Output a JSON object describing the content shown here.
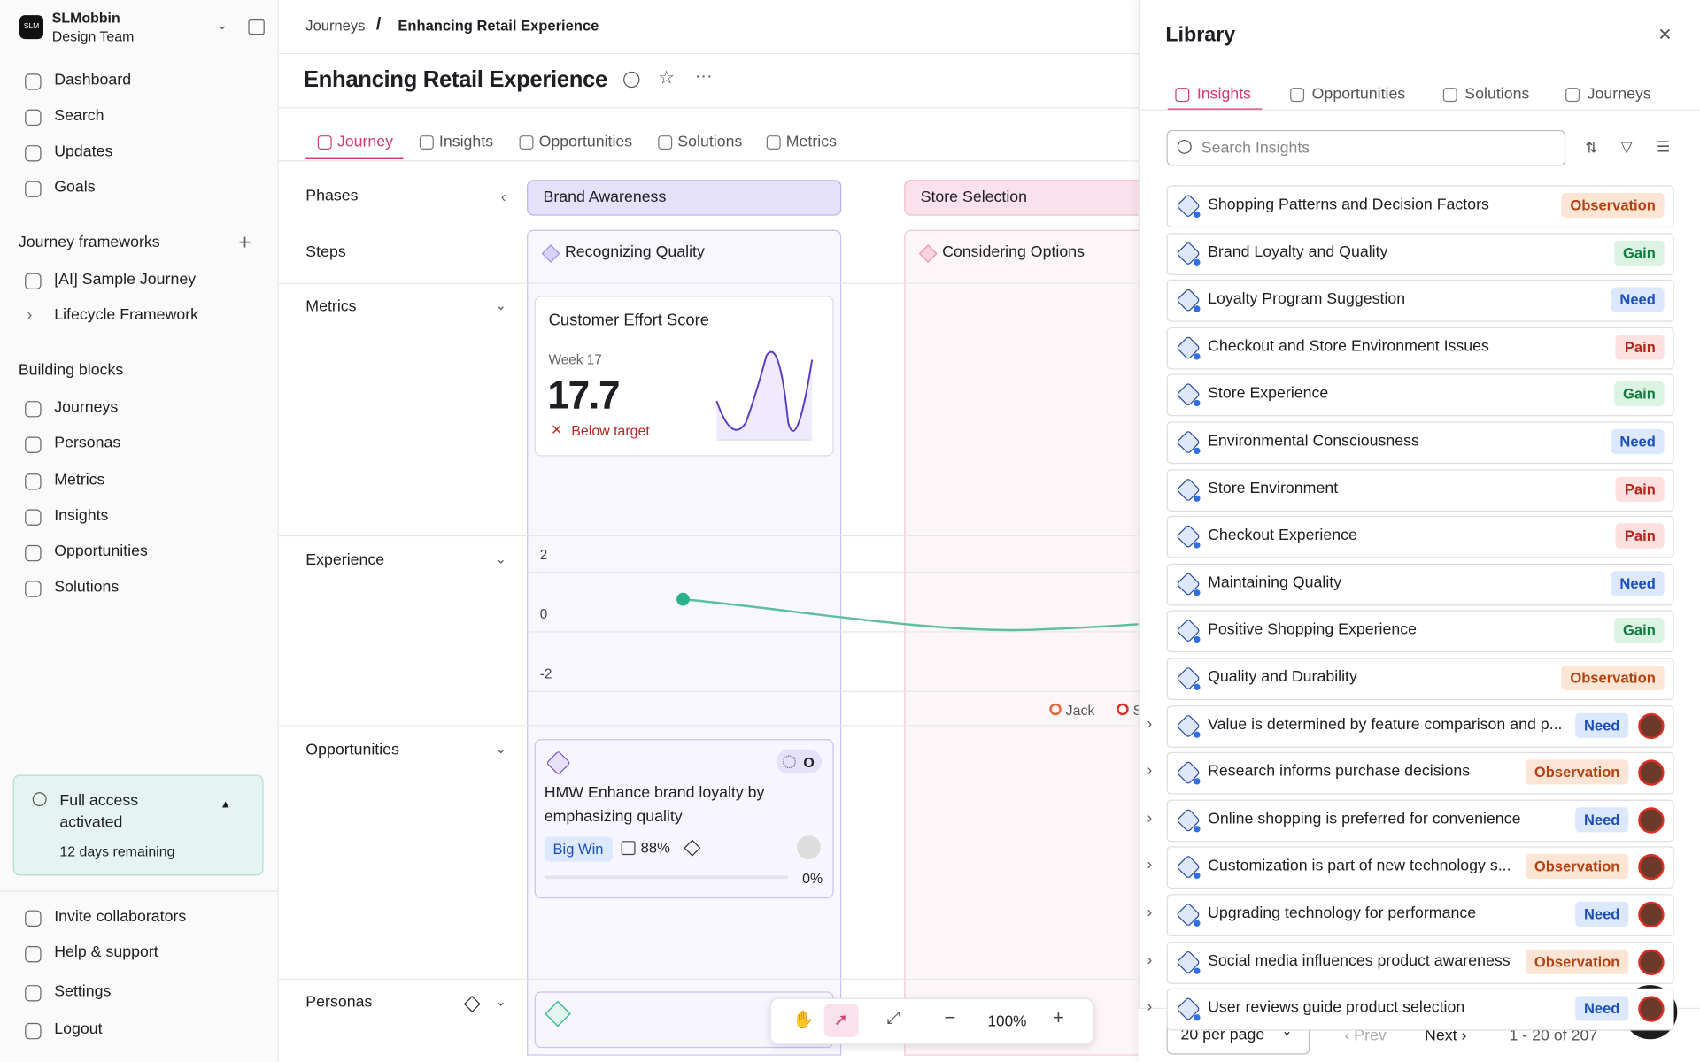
{
  "workspace": {
    "logo": "SLM",
    "name": "SLMobbin",
    "team": "Design Team"
  },
  "nav": [
    "Dashboard",
    "Search",
    "Updates",
    "Goals"
  ],
  "frameworks": {
    "title": "Journey frameworks",
    "items": [
      "[AI] Sample Journey",
      "Lifecycle Framework"
    ]
  },
  "blocks": {
    "title": "Building blocks",
    "items": [
      "Journeys",
      "Personas",
      "Metrics",
      "Insights",
      "Opportunities",
      "Solutions"
    ]
  },
  "access": {
    "title": "Full access activated",
    "remaining": "12 days remaining"
  },
  "footer_nav": [
    "Invite collaborators",
    "Help & support",
    "Settings",
    "Logout"
  ],
  "breadcrumb": {
    "parent": "Journeys",
    "separator": "/",
    "current": "Enhancing Retail Experience"
  },
  "page_title": "Enhancing Retail Experience",
  "tabs": [
    "Journey",
    "Insights",
    "Opportunities",
    "Solutions",
    "Metrics"
  ],
  "rows": [
    "Phases",
    "Steps",
    "Metrics",
    "Experience",
    "Opportunities",
    "Personas"
  ],
  "phases": [
    "Brand Awareness",
    "Store Selection"
  ],
  "steps": [
    "Recognizing Quality",
    "Considering Options"
  ],
  "metric_card": {
    "title": "Customer Effort Score",
    "period": "Week 17",
    "value": "17.7",
    "status": "Below target"
  },
  "experience": {
    "yticks": [
      2,
      0,
      -2
    ],
    "legend": [
      "Jack",
      "S"
    ]
  },
  "opportunity_card": {
    "badge": "O",
    "title": "HMW Enhance brand loyalty by emphasizing quality",
    "tag": "Big Win",
    "confidence": "88%",
    "progress": "0%"
  },
  "toolbar": {
    "zoom": "100%"
  },
  "library": {
    "title": "Library",
    "tabs": [
      "Insights",
      "Opportunities",
      "Solutions",
      "Journeys"
    ],
    "search_placeholder": "Search Insights",
    "items": [
      {
        "title": "Shopping Patterns and Decision Factors",
        "type": "Observation"
      },
      {
        "title": "Brand Loyalty and Quality",
        "type": "Gain"
      },
      {
        "title": "Loyalty Program Suggestion",
        "type": "Need"
      },
      {
        "title": "Checkout and Store Environment Issues",
        "type": "Pain"
      },
      {
        "title": "Store Experience",
        "type": "Gain"
      },
      {
        "title": "Environmental Consciousness",
        "type": "Need"
      },
      {
        "title": "Store Environment",
        "type": "Pain"
      },
      {
        "title": "Checkout Experience",
        "type": "Pain"
      },
      {
        "title": "Maintaining Quality",
        "type": "Need"
      },
      {
        "title": "Positive Shopping Experience",
        "type": "Gain"
      },
      {
        "title": "Quality and Durability",
        "type": "Observation"
      },
      {
        "title": "Value is determined by feature comparison and p...",
        "type": "Need",
        "expandable": true
      },
      {
        "title": "Research informs purchase decisions",
        "type": "Observation",
        "expandable": true
      },
      {
        "title": "Online shopping is preferred for convenience",
        "type": "Need",
        "expandable": true
      },
      {
        "title": "Customization is part of new technology s...",
        "type": "Observation",
        "expandable": true
      },
      {
        "title": "Upgrading technology for performance",
        "type": "Need",
        "expandable": true
      },
      {
        "title": "Social media influences product awareness",
        "type": "Observation",
        "expandable": true
      },
      {
        "title": "User reviews guide product selection",
        "type": "Need",
        "expandable": true
      }
    ],
    "per_page": "20 per page",
    "prev": "Prev",
    "next": "Next",
    "range": "1 - 20 of 207"
  }
}
